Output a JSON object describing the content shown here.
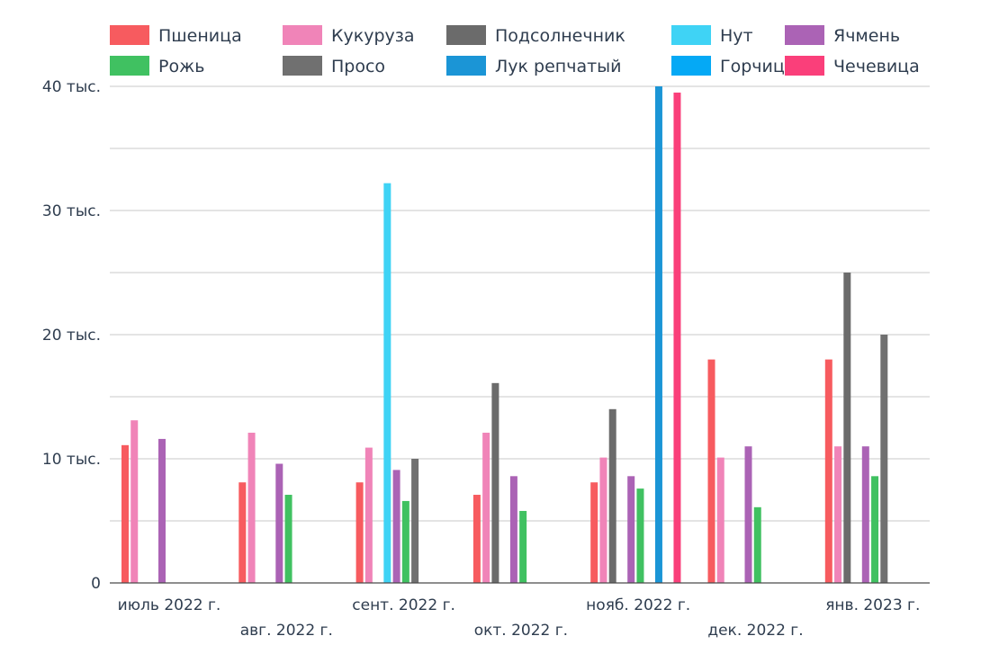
{
  "chart_data": {
    "type": "bar",
    "title": "",
    "xlabel": "",
    "ylabel": "",
    "ylim": [
      0,
      40000
    ],
    "grid": true,
    "legend_position": "top",
    "y_ticks": [
      {
        "value": 0,
        "label": "0"
      },
      {
        "value": 10000,
        "label": "10 тыс."
      },
      {
        "value": 20000,
        "label": "20 тыс."
      },
      {
        "value": 30000,
        "label": "30 тыс."
      },
      {
        "value": 40000,
        "label": "40 тыс."
      }
    ],
    "categories": [
      "июль 2022 г.",
      "авг. 2022 г.",
      "сент. 2022 г.",
      "окт. 2022 г.",
      "нояб. 2022 г.",
      "дек. 2022 г.",
      "янв. 2023 г."
    ],
    "series": [
      {
        "name": "Пшеница",
        "color": "#f75b5f",
        "values": [
          11100,
          8100,
          8100,
          7100,
          8100,
          18000,
          18000
        ]
      },
      {
        "name": "Кукуруза",
        "color": "#f084b8",
        "values": [
          13100,
          12100,
          10900,
          12100,
          10100,
          10100,
          11000
        ]
      },
      {
        "name": "Подсолнечник",
        "color": "#6b6b6b",
        "values": [
          null,
          null,
          null,
          16100,
          14000,
          null,
          25000
        ]
      },
      {
        "name": "Нут",
        "color": "#3fd3f5",
        "values": [
          null,
          null,
          32200,
          null,
          null,
          null,
          null
        ]
      },
      {
        "name": "Ячмень",
        "color": "#ab63b5",
        "values": [
          11600,
          9600,
          9100,
          8600,
          8600,
          11000,
          11000
        ]
      },
      {
        "name": "Рожь",
        "color": "#40c161",
        "values": [
          null,
          7100,
          6600,
          5800,
          7600,
          6100,
          8600
        ]
      },
      {
        "name": "Просо",
        "color": "#707070",
        "values": [
          null,
          null,
          10000,
          null,
          null,
          null,
          20000
        ]
      },
      {
        "name": "Лук репчатый",
        "color": "#1b95d6",
        "values": [
          null,
          null,
          null,
          null,
          40000,
          null,
          null
        ]
      },
      {
        "name": "Горчица",
        "color": "#05a9f5",
        "values": [
          null,
          null,
          null,
          null,
          null,
          null,
          null
        ]
      },
      {
        "name": "Чечевица",
        "color": "#fa3f7a",
        "values": [
          null,
          null,
          null,
          null,
          39500,
          null,
          null
        ]
      }
    ]
  }
}
